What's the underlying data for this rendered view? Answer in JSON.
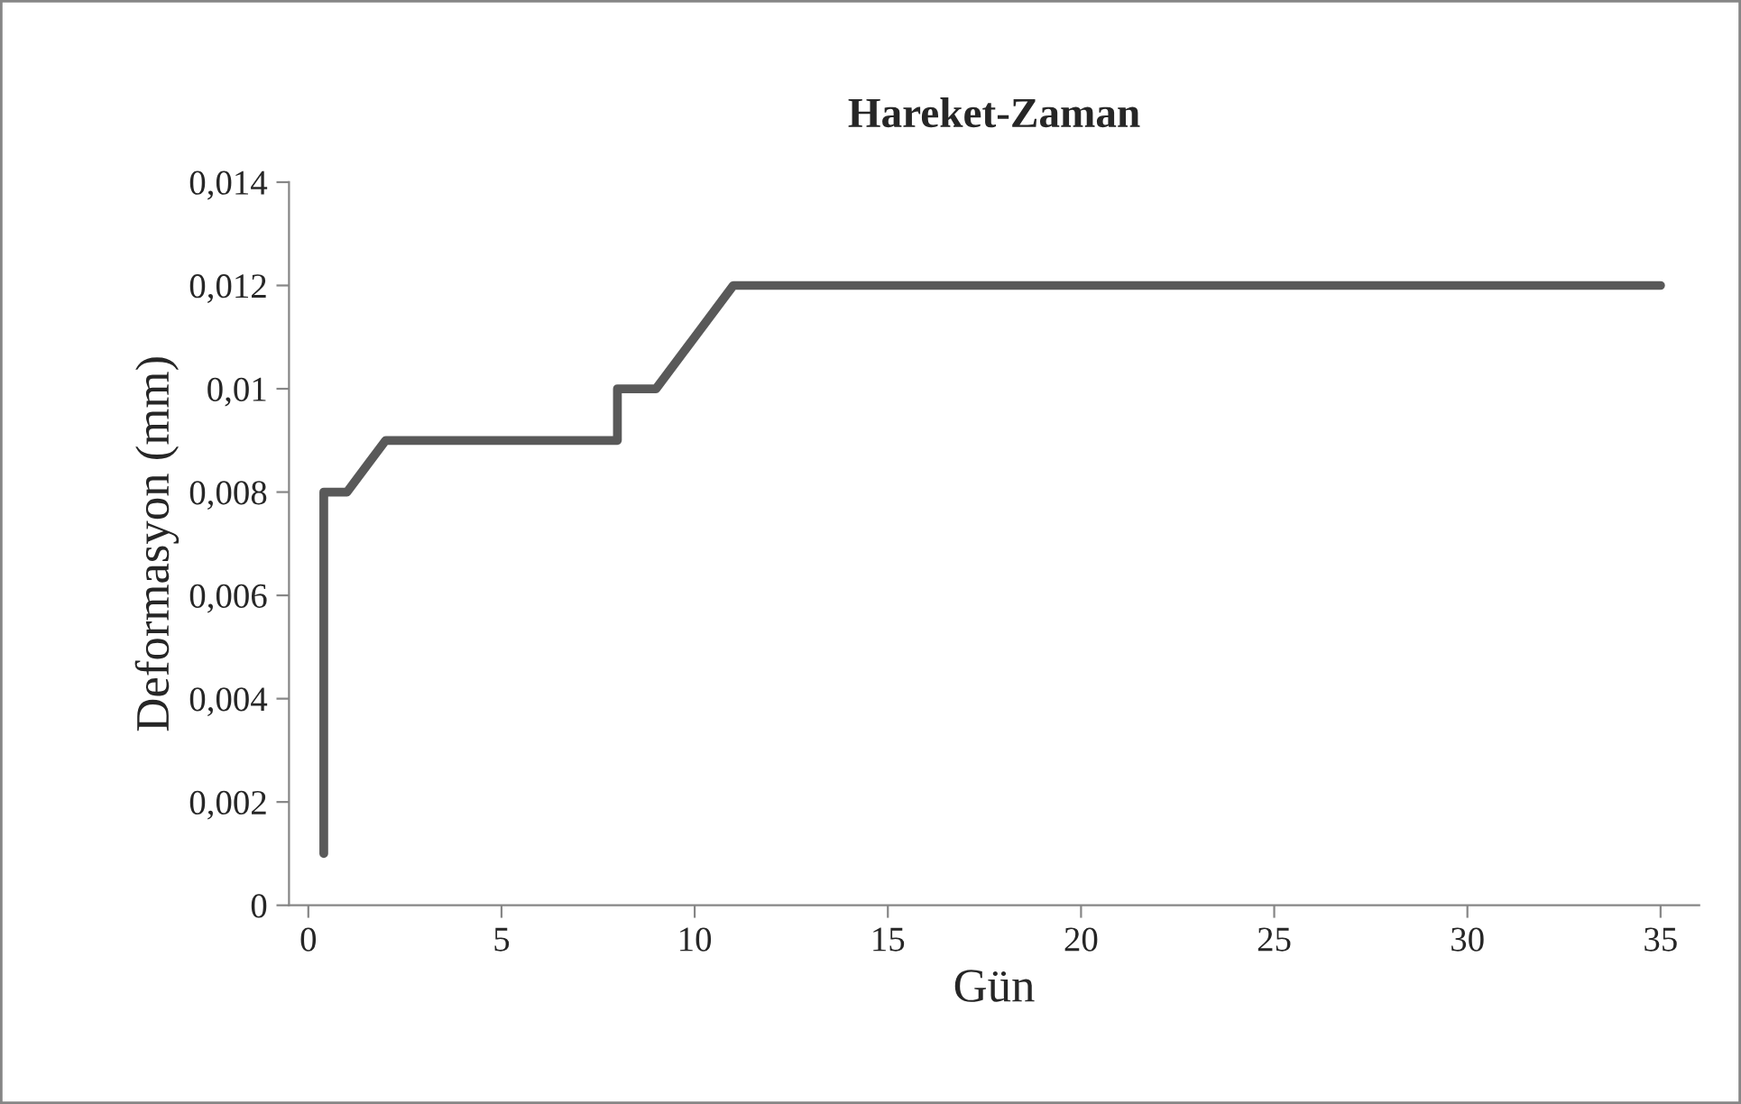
{
  "chart_data": {
    "type": "line",
    "title": "Hareket-Zaman",
    "xlabel": "Gün",
    "ylabel": "Deformasyon (mm)",
    "series": [
      {
        "color": "#595959",
        "x": [
          0.4,
          0.4,
          1.0,
          2.0,
          8.0,
          8.0,
          9.0,
          11.0,
          35.0
        ],
        "values": [
          0.001,
          0.008,
          0.008,
          0.009,
          0.009,
          0.01,
          0.01,
          0.012,
          0.012
        ]
      }
    ],
    "xlim": [
      -0.5,
      36
    ],
    "xticks": [
      0,
      5,
      10,
      15,
      20,
      25,
      30,
      35
    ],
    "ylim": [
      0,
      0.014
    ],
    "yticks": [
      0,
      {
        "value": 0.002,
        "label": "0,002"
      },
      {
        "value": 0.004,
        "label": "0,004"
      },
      {
        "value": 0.006,
        "label": "0,006"
      },
      {
        "value": 0.008,
        "label": "0,008"
      },
      {
        "value": 0.01,
        "label": "0,01"
      },
      {
        "value": 0.012,
        "label": "0,012"
      },
      {
        "value": 0.014,
        "label": "0,014"
      }
    ],
    "grid": false,
    "legend": false,
    "marker": "none",
    "line_style": "solid"
  }
}
